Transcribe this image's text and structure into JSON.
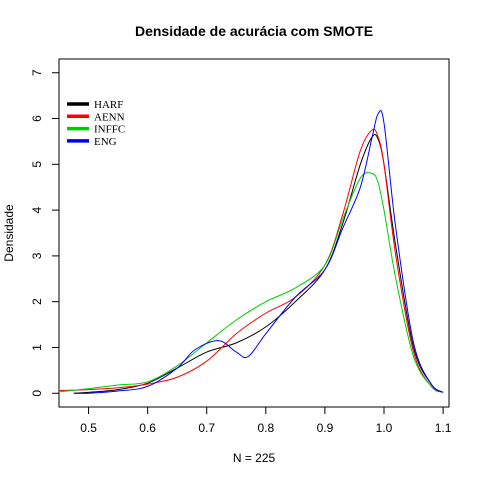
{
  "chart_data": {
    "type": "line",
    "title": "Densidade de acurácia com SMOTE",
    "xlabel": "N = 225",
    "ylabel": "Densidade",
    "xlim": [
      0.45,
      1.11
    ],
    "ylim": [
      -0.3,
      7.3
    ],
    "x_ticks": [
      "0.5",
      "0.6",
      "0.7",
      "0.8",
      "0.9",
      "1.0",
      "1.1"
    ],
    "y_ticks": [
      "0",
      "1",
      "2",
      "3",
      "4",
      "5",
      "6",
      "7"
    ],
    "grid": false,
    "legend_position": "top-left",
    "series": [
      {
        "name": "HARF",
        "color": "#000000",
        "x": [
          0.475,
          0.5,
          0.55,
          0.6,
          0.65,
          0.7,
          0.75,
          0.8,
          0.85,
          0.9,
          0.93,
          0.96,
          0.98,
          0.99,
          1.0,
          1.02,
          1.05,
          1.08,
          1.1
        ],
        "y": [
          0.0,
          0.02,
          0.08,
          0.22,
          0.55,
          0.9,
          1.1,
          1.45,
          2.0,
          2.7,
          3.7,
          5.0,
          5.6,
          5.55,
          5.0,
          3.2,
          1.0,
          0.2,
          0.02
        ]
      },
      {
        "name": "AENN",
        "color": "#ff0000",
        "x": [
          0.45,
          0.5,
          0.55,
          0.6,
          0.65,
          0.7,
          0.75,
          0.8,
          0.85,
          0.9,
          0.93,
          0.96,
          0.98,
          0.99,
          1.0,
          1.02,
          1.05,
          1.08,
          1.1
        ],
        "y": [
          0.06,
          0.08,
          0.12,
          0.2,
          0.35,
          0.7,
          1.3,
          1.75,
          2.1,
          2.8,
          3.9,
          5.3,
          5.75,
          5.6,
          5.0,
          3.0,
          0.9,
          0.15,
          0.02
        ]
      },
      {
        "name": "INFFC",
        "color": "#00cd00",
        "x": [
          0.45,
          0.5,
          0.55,
          0.6,
          0.65,
          0.7,
          0.75,
          0.8,
          0.85,
          0.9,
          0.93,
          0.96,
          0.98,
          0.99,
          1.0,
          1.02,
          1.05,
          1.08,
          1.1
        ],
        "y": [
          0.03,
          0.1,
          0.18,
          0.25,
          0.6,
          1.1,
          1.6,
          2.0,
          2.3,
          2.8,
          3.8,
          4.7,
          4.8,
          4.6,
          4.0,
          2.5,
          0.8,
          0.15,
          0.02
        ]
      },
      {
        "name": "ENG",
        "color": "#0000ff",
        "x": [
          0.475,
          0.5,
          0.55,
          0.6,
          0.65,
          0.68,
          0.72,
          0.75,
          0.77,
          0.8,
          0.85,
          0.9,
          0.93,
          0.96,
          0.98,
          0.99,
          1.0,
          1.02,
          1.05,
          1.08,
          1.1
        ],
        "y": [
          0.0,
          0.0,
          0.05,
          0.15,
          0.55,
          0.95,
          1.15,
          0.9,
          0.8,
          1.3,
          2.1,
          2.7,
          3.6,
          4.5,
          5.6,
          6.1,
          5.9,
          3.6,
          1.1,
          0.2,
          0.02
        ]
      }
    ]
  }
}
